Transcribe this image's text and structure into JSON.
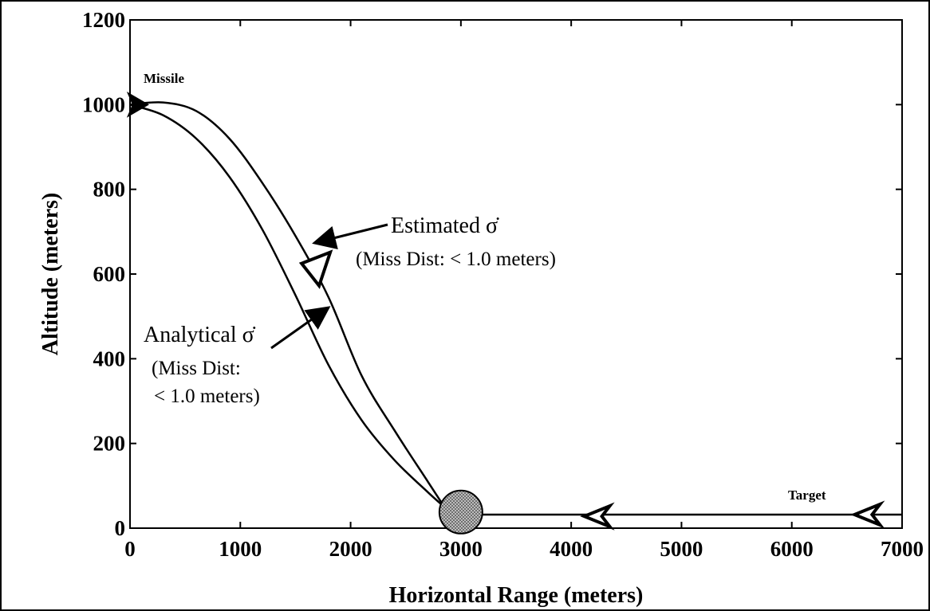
{
  "chart_data": {
    "type": "line",
    "title": "",
    "xlabel": "Horizontal Range (meters)",
    "ylabel": "Altitude (meters)",
    "xlim": [
      0,
      7000
    ],
    "ylim": [
      0,
      1200
    ],
    "xticks": [
      0,
      1000,
      2000,
      3000,
      4000,
      5000,
      6000,
      7000
    ],
    "yticks": [
      0,
      200,
      400,
      600,
      800,
      1000,
      1200
    ],
    "grid": false,
    "series": [
      {
        "name": "Analytical σ̇",
        "color": "#000000",
        "x": [
          0,
          300,
          600,
          900,
          1200,
          1500,
          1800,
          2100,
          2400,
          2700,
          2850
        ],
        "y": [
          1000,
          975,
          920,
          830,
          705,
          550,
          385,
          255,
          160,
          85,
          50
        ]
      },
      {
        "name": "Estimated σ̇",
        "color": "#000000",
        "x": [
          0,
          300,
          600,
          900,
          1200,
          1500,
          1800,
          2100,
          2400,
          2700,
          2850
        ],
        "y": [
          1000,
          1005,
          985,
          920,
          815,
          690,
          545,
          360,
          230,
          110,
          50
        ]
      },
      {
        "name": "Target path",
        "color": "#000000",
        "x": [
          3000,
          4000,
          5000,
          6000,
          7000
        ],
        "y": [
          32,
          32,
          32,
          32,
          32
        ]
      }
    ],
    "markers": [
      {
        "type": "missile-start",
        "x": 0,
        "y": 1000
      },
      {
        "type": "intercept-point",
        "x": 3000,
        "y": 38
      },
      {
        "type": "missile-arrow",
        "x": 1700,
        "y": 610
      },
      {
        "type": "target-arrow",
        "x": 4350,
        "y": 28
      },
      {
        "type": "target-arrow",
        "x": 6800,
        "y": 32
      }
    ],
    "annotations": {
      "missile": "Missile",
      "target": "Target",
      "estimated_label": "Estimated σ̇",
      "estimated_note": "(Miss Dist: < 1.0 meters)",
      "analytical_label": "Analytical σ̇",
      "analytical_note_1": "(Miss Dist:",
      "analytical_note_2": "< 1.0 meters)"
    }
  }
}
